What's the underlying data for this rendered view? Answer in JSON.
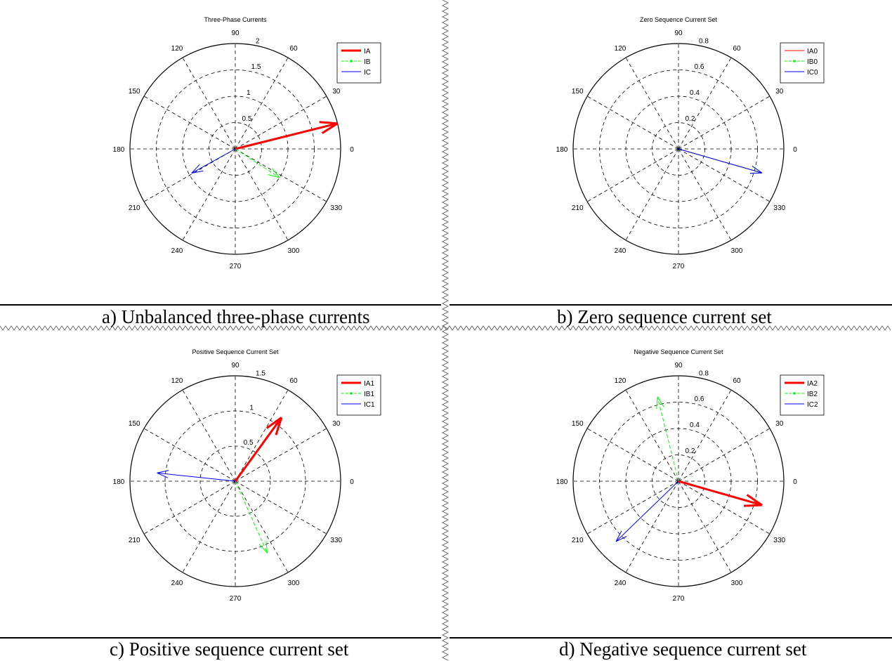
{
  "captions": {
    "a": "a) Unbalanced three-phase currents",
    "b": "b) Zero sequence current set",
    "c": "c) Positive sequence current set",
    "d": "d) Negative sequence current set"
  },
  "colors": {
    "red": "#ff0000",
    "green": "#00ff00",
    "blue": "#0000ff"
  },
  "chart_data": [
    {
      "type": "polar",
      "title": "Three-Phase Currents",
      "rmax": 2,
      "r_ticks": [
        0.5,
        1,
        1.5,
        2
      ],
      "angle_ticks": [
        0,
        30,
        60,
        90,
        120,
        150,
        180,
        210,
        240,
        270,
        300,
        330
      ],
      "legend_position": "top-right",
      "series": [
        {
          "name": "IA",
          "magnitude": 2.0,
          "angle_deg": 14,
          "color": "#ff0000",
          "style": "solid-thick"
        },
        {
          "name": "IB",
          "magnitude": 1.0,
          "angle_deg": -33,
          "color": "#00ff00",
          "style": "dashed-marker"
        },
        {
          "name": "IC",
          "magnitude": 0.95,
          "angle_deg": 209,
          "color": "#0000ff",
          "style": "solid-thin"
        }
      ]
    },
    {
      "type": "polar",
      "title": "Zero Sequence Current Set",
      "rmax": 0.8,
      "r_ticks": [
        0.2,
        0.4,
        0.6,
        0.8
      ],
      "angle_ticks": [
        0,
        30,
        60,
        90,
        120,
        150,
        180,
        210,
        240,
        270,
        300,
        330
      ],
      "legend_position": "top-right",
      "series": [
        {
          "name": "IA0",
          "magnitude": 0.66,
          "angle_deg": -16,
          "color": "#ff0000",
          "style": "solid-thin"
        },
        {
          "name": "IB0",
          "magnitude": 0.66,
          "angle_deg": -16,
          "color": "#00ff00",
          "style": "dashed-marker"
        },
        {
          "name": "IC0",
          "magnitude": 0.66,
          "angle_deg": -16,
          "color": "#0000ff",
          "style": "solid-thin"
        }
      ]
    },
    {
      "type": "polar",
      "title": "Positive Sequence Current Set",
      "rmax": 1.5,
      "r_ticks": [
        0.5,
        1,
        1.5
      ],
      "angle_ticks": [
        0,
        30,
        60,
        90,
        120,
        150,
        180,
        210,
        240,
        270,
        300,
        330
      ],
      "legend_position": "top-right",
      "series": [
        {
          "name": "IA1",
          "magnitude": 1.12,
          "angle_deg": 54,
          "color": "#ff0000",
          "style": "solid-thick"
        },
        {
          "name": "IB1",
          "magnitude": 1.12,
          "angle_deg": -66,
          "color": "#00ff00",
          "style": "dashed-marker"
        },
        {
          "name": "IC1",
          "magnitude": 1.12,
          "angle_deg": 174,
          "color": "#0000ff",
          "style": "solid-thin"
        }
      ]
    },
    {
      "type": "polar",
      "title": "Negative Sequence Current Set",
      "rmax": 0.8,
      "r_ticks": [
        0.2,
        0.4,
        0.6,
        0.8
      ],
      "angle_ticks": [
        0,
        30,
        60,
        90,
        120,
        150,
        180,
        210,
        240,
        270,
        300,
        330
      ],
      "legend_position": "top-right",
      "series": [
        {
          "name": "IA2",
          "magnitude": 0.66,
          "angle_deg": -16,
          "color": "#ff0000",
          "style": "solid-thick"
        },
        {
          "name": "IB2",
          "magnitude": 0.66,
          "angle_deg": 104,
          "color": "#00ff00",
          "style": "dashed-marker"
        },
        {
          "name": "IC2",
          "magnitude": 0.66,
          "angle_deg": 224,
          "color": "#0000ff",
          "style": "solid-thin"
        }
      ]
    }
  ]
}
